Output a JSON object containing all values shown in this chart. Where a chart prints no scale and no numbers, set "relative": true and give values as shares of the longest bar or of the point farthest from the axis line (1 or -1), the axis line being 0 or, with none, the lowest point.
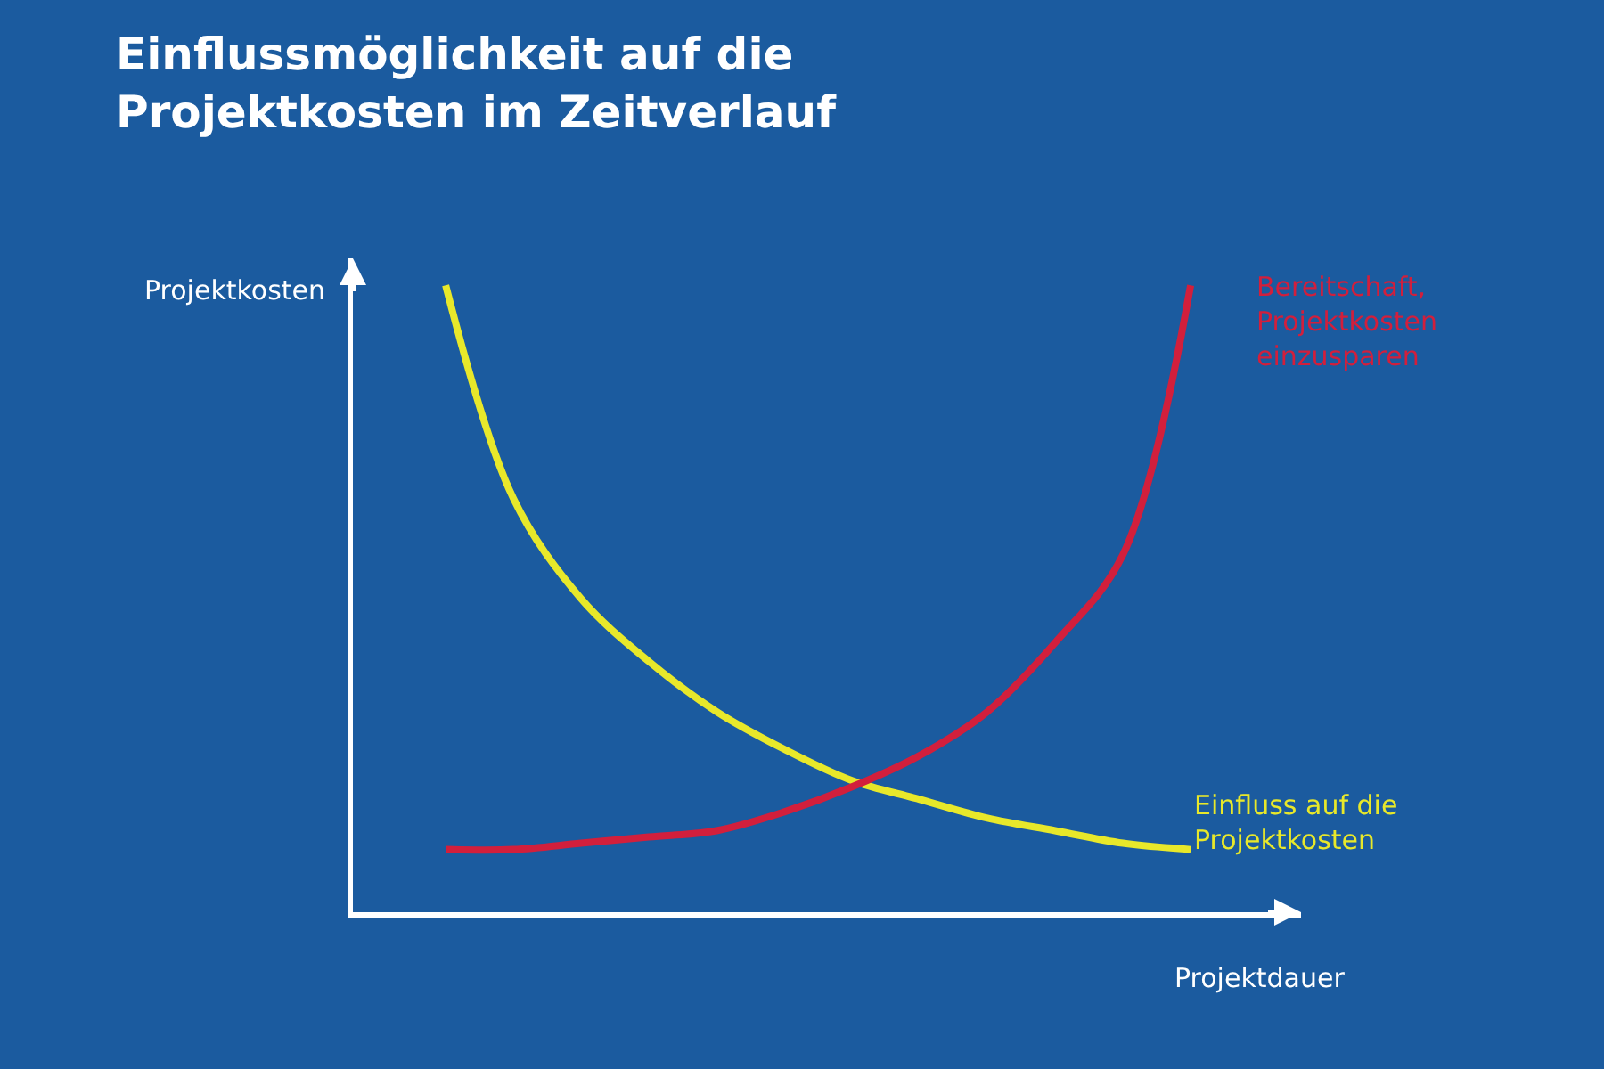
{
  "chart_data": {
    "type": "line",
    "title": "Einflussmöglichkeit auf die Projektkosten im Zeitverlauf",
    "xlabel": "Projektdauer",
    "ylabel": "Projektkosten",
    "relative": true,
    "categories": [
      null,
      null,
      null,
      null,
      null,
      null,
      null,
      null,
      null,
      null,
      null,
      null
    ],
    "series": [
      {
        "name": "Einfluss auf die Projektkosten",
        "color": "#e8e82a",
        "values": [
          1.0,
          0.66,
          0.5,
          0.4,
          0.32,
          0.26,
          0.21,
          0.18,
          0.15,
          0.13,
          0.11,
          0.1
        ]
      },
      {
        "name": "Bereitschaft, Projektkosten einzusparen",
        "color": "#d21f3c",
        "values": [
          0.1,
          0.1,
          0.11,
          0.12,
          0.13,
          0.16,
          0.2,
          0.25,
          0.32,
          0.43,
          0.57,
          1.0
        ]
      }
    ]
  }
}
